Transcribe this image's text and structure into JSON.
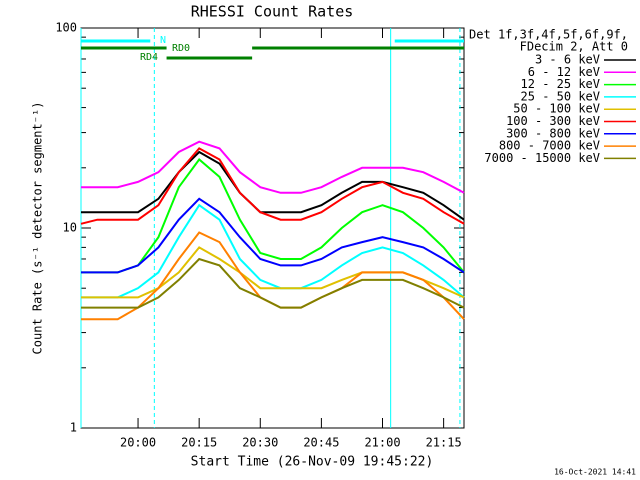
{
  "chart_data": {
    "type": "line",
    "title": "RHESSI Count Rates",
    "xlabel": "Start Time (26-Nov-09 19:45:22)",
    "ylabel": "Count Rate (s⁻¹ detector segment⁻¹)",
    "timestamp": "16-Oct-2021 14:41",
    "legend_title": [
      "Det 1f,3f,4f,5f,6f,9f,",
      "FDecim 2, Att 0"
    ],
    "log_y": true,
    "xlim": [
      "19:46",
      "21:20"
    ],
    "xticks": [
      "20:00",
      "20:15",
      "20:30",
      "20:45",
      "21:00",
      "21:15"
    ],
    "ylim": [
      1,
      100
    ],
    "yticks": [
      1,
      10,
      100
    ],
    "yminorticks": [
      2,
      3,
      4,
      5,
      6,
      7,
      8,
      9,
      20,
      30,
      40,
      50,
      60,
      70,
      80,
      90
    ],
    "x": [
      "19:46",
      "19:50",
      "19:55",
      "20:00",
      "20:05",
      "20:10",
      "20:15",
      "20:20",
      "20:25",
      "20:30",
      "20:35",
      "20:40",
      "20:45",
      "20:50",
      "20:55",
      "21:00",
      "21:05",
      "21:10",
      "21:15",
      "21:20"
    ],
    "series": [
      {
        "name": "3 - 6 keV",
        "color": "#000000",
        "values": [
          12,
          12,
          12,
          12,
          14,
          19,
          24,
          21,
          15,
          12,
          12,
          12,
          13,
          15,
          17,
          17,
          16,
          15,
          13,
          11
        ]
      },
      {
        "name": "6 - 12 keV",
        "color": "#ff00ff",
        "values": [
          16,
          16,
          16,
          17,
          19,
          24,
          27,
          25,
          19,
          16,
          15,
          15,
          16,
          18,
          20,
          20,
          20,
          19,
          17,
          15
        ]
      },
      {
        "name": "12 - 25 keV",
        "color": "#00ff00",
        "values": [
          6,
          6,
          6,
          6.5,
          9,
          16,
          22,
          18,
          11,
          7.5,
          7,
          7,
          8,
          10,
          12,
          13,
          12,
          10,
          8,
          6
        ]
      },
      {
        "name": "25 - 50 keV",
        "color": "#00ffff",
        "values": [
          4.5,
          4.5,
          4.5,
          5,
          6,
          9,
          13,
          11,
          7,
          5.5,
          5,
          5,
          5.5,
          6.5,
          7.5,
          8,
          7.5,
          6.5,
          5.5,
          4.5
        ]
      },
      {
        "name": "50 - 100 keV",
        "color": "#e0c000",
        "values": [
          4.5,
          4.5,
          4.5,
          4.5,
          5,
          6,
          8,
          7,
          6,
          5,
          5,
          5,
          5,
          5.5,
          6,
          6,
          6,
          5.5,
          5,
          4.5
        ]
      },
      {
        "name": "100 - 300 keV",
        "color": "#ff0000",
        "values": [
          10.5,
          11,
          11,
          11,
          13,
          19,
          25,
          22,
          15,
          12,
          11,
          11,
          12,
          14,
          16,
          17,
          15,
          14,
          12,
          10.5
        ]
      },
      {
        "name": "300 - 800 keV",
        "color": "#0000ff",
        "values": [
          6,
          6,
          6,
          6.5,
          8,
          11,
          14,
          12,
          9,
          7,
          6.5,
          6.5,
          7,
          8,
          8.5,
          9,
          8.5,
          8,
          7,
          6
        ]
      },
      {
        "name": "800 - 7000 keV",
        "color": "#ff8000",
        "values": [
          3.5,
          3.5,
          3.5,
          4,
          5,
          7,
          9.5,
          8.5,
          6,
          4.5,
          4,
          4,
          4.5,
          5,
          6,
          6,
          6,
          5.5,
          4.5,
          3.5
        ]
      },
      {
        "name": "7000 - 15000 keV",
        "color": "#808000",
        "values": [
          4,
          4,
          4,
          4,
          4.5,
          5.5,
          7,
          6.5,
          5,
          4.5,
          4,
          4,
          4.5,
          5,
          5.5,
          5.5,
          5.5,
          5,
          4.5,
          4
        ]
      }
    ],
    "state_bars": [
      {
        "label": "N",
        "color": "#00ffff",
        "start": "19:46",
        "end": "20:03"
      },
      {
        "color": "#00ffff",
        "start": "21:03",
        "end": "21:20"
      },
      {
        "label": "RD0",
        "color": "#008000",
        "start": "19:46",
        "end": "20:07"
      },
      {
        "color": "#008000",
        "start": "20:28",
        "end": "21:20"
      },
      {
        "label": "RD4",
        "color": "#008000",
        "start": "20:07",
        "end": "20:28"
      }
    ],
    "vlines": [
      {
        "time": "19:46",
        "color": "#00ffff",
        "dashed": false
      },
      {
        "time": "20:04",
        "color": "#00ffff",
        "dashed": true
      },
      {
        "time": "21:02",
        "color": "#00ffff",
        "dashed": false
      },
      {
        "time": "21:19",
        "color": "#00ffff",
        "dashed": true
      }
    ]
  }
}
